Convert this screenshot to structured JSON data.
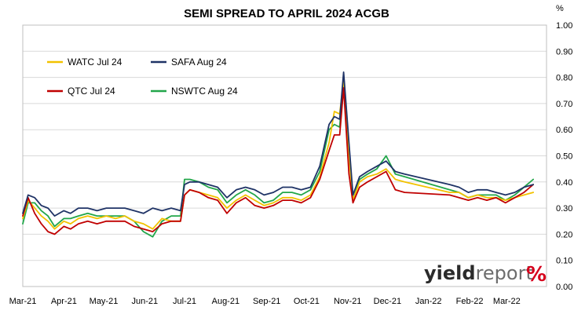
{
  "chart_data": {
    "type": "line",
    "title": "SEMI SPREAD TO APRIL 2024 ACGB",
    "ylabel": "%",
    "ylim": [
      0,
      1.0
    ],
    "yticks": [
      "1.00",
      "0.90",
      "0.80",
      "0.70",
      "0.60",
      "0.50",
      "0.40",
      "0.30",
      "0.20",
      "0.10",
      "0.00"
    ],
    "y_axis_side": "right",
    "xlim": [
      "2021-03-01",
      "2022-03-31"
    ],
    "xticks": [
      "Mar-21",
      "Apr-21",
      "May-21",
      "Jun-21",
      "Jul-21",
      "Aug-21",
      "Sep-21",
      "Oct-21",
      "Nov-21",
      "Dec-21",
      "Jan-22",
      "Feb-22",
      "Mar-22"
    ],
    "xtick_dates": [
      "2021-03-01",
      "2021-04-01",
      "2021-05-01",
      "2021-06-01",
      "2021-07-01",
      "2021-08-01",
      "2021-09-01",
      "2021-10-01",
      "2021-11-01",
      "2021-12-01",
      "2022-01-01",
      "2022-02-01",
      "2022-03-01"
    ],
    "grid": {
      "horizontal": true,
      "vertical": false
    },
    "legend_position": "top-left",
    "x": [
      "2021-03-01",
      "2021-03-05",
      "2021-03-10",
      "2021-03-15",
      "2021-03-20",
      "2021-03-25",
      "2021-04-01",
      "2021-04-06",
      "2021-04-12",
      "2021-04-19",
      "2021-04-26",
      "2021-05-03",
      "2021-05-10",
      "2021-05-17",
      "2021-05-24",
      "2021-05-31",
      "2021-06-07",
      "2021-06-14",
      "2021-06-21",
      "2021-06-28",
      "2021-07-01",
      "2021-07-05",
      "2021-07-12",
      "2021-07-19",
      "2021-07-26",
      "2021-08-02",
      "2021-08-09",
      "2021-08-16",
      "2021-08-23",
      "2021-08-30",
      "2021-09-06",
      "2021-09-13",
      "2021-09-20",
      "2021-09-27",
      "2021-10-04",
      "2021-10-11",
      "2021-10-18",
      "2021-10-22",
      "2021-10-26",
      "2021-10-29",
      "2021-11-02",
      "2021-11-05",
      "2021-11-10",
      "2021-11-16",
      "2021-11-23",
      "2021-11-30",
      "2021-12-07",
      "2021-12-14",
      "2022-01-17",
      "2022-01-24",
      "2022-01-31",
      "2022-02-07",
      "2022-02-14",
      "2022-02-21",
      "2022-02-28",
      "2022-03-07",
      "2022-03-14",
      "2022-03-21"
    ],
    "series": [
      {
        "name": "WATC Jul 24",
        "color": "#f2c200",
        "values": [
          0.26,
          0.33,
          0.3,
          0.27,
          0.25,
          0.22,
          0.25,
          0.24,
          0.26,
          0.27,
          0.26,
          0.27,
          0.26,
          0.27,
          0.25,
          0.24,
          0.22,
          0.26,
          0.25,
          0.25,
          0.35,
          0.37,
          0.36,
          0.35,
          0.34,
          0.3,
          0.33,
          0.35,
          0.33,
          0.31,
          0.32,
          0.34,
          0.34,
          0.33,
          0.35,
          0.42,
          0.55,
          0.67,
          0.66,
          0.79,
          0.5,
          0.33,
          0.4,
          0.42,
          0.43,
          0.45,
          0.41,
          0.4,
          0.36,
          0.36,
          0.34,
          0.35,
          0.34,
          0.34,
          0.33,
          0.34,
          0.35,
          0.36
        ]
      },
      {
        "name": "SAFA Aug 24",
        "color": "#1f3366",
        "values": [
          0.28,
          0.35,
          0.34,
          0.31,
          0.3,
          0.27,
          0.29,
          0.28,
          0.3,
          0.3,
          0.29,
          0.3,
          0.3,
          0.3,
          0.29,
          0.28,
          0.3,
          0.29,
          0.3,
          0.29,
          0.39,
          0.4,
          0.4,
          0.39,
          0.38,
          0.34,
          0.37,
          0.38,
          0.37,
          0.35,
          0.36,
          0.38,
          0.38,
          0.37,
          0.38,
          0.46,
          0.62,
          0.65,
          0.64,
          0.82,
          0.55,
          0.35,
          0.42,
          0.44,
          0.46,
          0.48,
          0.44,
          0.43,
          0.39,
          0.38,
          0.36,
          0.37,
          0.37,
          0.36,
          0.35,
          0.36,
          0.38,
          0.39
        ]
      },
      {
        "name": "QTC Jul 24",
        "color": "#c00000",
        "values": [
          0.27,
          0.34,
          0.28,
          0.24,
          0.21,
          0.2,
          0.23,
          0.22,
          0.24,
          0.25,
          0.24,
          0.25,
          0.25,
          0.25,
          0.23,
          0.22,
          0.21,
          0.24,
          0.25,
          0.25,
          0.35,
          0.37,
          0.36,
          0.34,
          0.33,
          0.28,
          0.32,
          0.34,
          0.31,
          0.3,
          0.31,
          0.33,
          0.33,
          0.32,
          0.34,
          0.41,
          0.52,
          0.58,
          0.58,
          0.76,
          0.43,
          0.32,
          0.38,
          0.4,
          0.42,
          0.44,
          0.37,
          0.36,
          0.35,
          0.34,
          0.33,
          0.34,
          0.33,
          0.34,
          0.32,
          0.34,
          0.36,
          0.39
        ]
      },
      {
        "name": "NSWTC Aug 24",
        "color": "#22a64a",
        "values": [
          0.24,
          0.32,
          0.32,
          0.29,
          0.27,
          0.23,
          0.26,
          0.26,
          0.27,
          0.28,
          0.27,
          0.27,
          0.27,
          0.27,
          0.25,
          0.21,
          0.19,
          0.25,
          0.27,
          0.27,
          0.41,
          0.41,
          0.4,
          0.38,
          0.37,
          0.32,
          0.35,
          0.37,
          0.35,
          0.32,
          0.33,
          0.36,
          0.36,
          0.35,
          0.37,
          0.44,
          0.6,
          0.62,
          0.61,
          0.81,
          0.52,
          0.33,
          0.41,
          0.43,
          0.45,
          0.5,
          0.43,
          0.42,
          0.37,
          0.36,
          0.34,
          0.35,
          0.35,
          0.35,
          0.33,
          0.35,
          0.38,
          0.41
        ]
      }
    ]
  },
  "brand": {
    "part1": "yield",
    "part2": "report",
    "part3": "%",
    "color_pct_red": "#d6001c",
    "color_pct_green": "#1e9a3a"
  }
}
